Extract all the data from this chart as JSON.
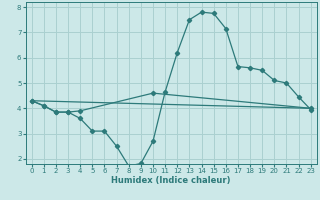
{
  "xlabel": "Humidex (Indice chaleur)",
  "bg_color": "#cce8e8",
  "grid_color": "#aad0d0",
  "line_color": "#2d7a7a",
  "xlim": [
    -0.5,
    23.5
  ],
  "ylim": [
    1.8,
    8.2
  ],
  "xticks": [
    0,
    1,
    2,
    3,
    4,
    5,
    6,
    7,
    8,
    9,
    10,
    11,
    12,
    13,
    14,
    15,
    16,
    17,
    18,
    19,
    20,
    21,
    22,
    23
  ],
  "yticks": [
    2,
    3,
    4,
    5,
    6,
    7,
    8
  ],
  "line1_x": [
    0,
    1,
    2,
    3,
    4,
    5,
    6,
    7,
    8,
    9,
    10,
    11,
    12,
    13,
    14,
    15,
    16,
    17,
    18,
    19,
    20,
    21,
    22,
    23
  ],
  "line1_y": [
    4.3,
    4.1,
    3.85,
    3.85,
    3.6,
    3.1,
    3.1,
    2.5,
    1.72,
    1.82,
    2.7,
    4.65,
    6.2,
    7.5,
    7.8,
    7.75,
    7.15,
    5.65,
    5.6,
    5.5,
    5.1,
    5.0,
    4.45,
    3.95
  ],
  "line2_x": [
    0,
    1,
    2,
    3,
    4,
    10,
    23
  ],
  "line2_y": [
    4.3,
    4.1,
    3.85,
    3.85,
    3.9,
    4.6,
    4.0
  ],
  "line3_x": [
    0,
    23
  ],
  "line3_y": [
    4.3,
    4.0
  ]
}
